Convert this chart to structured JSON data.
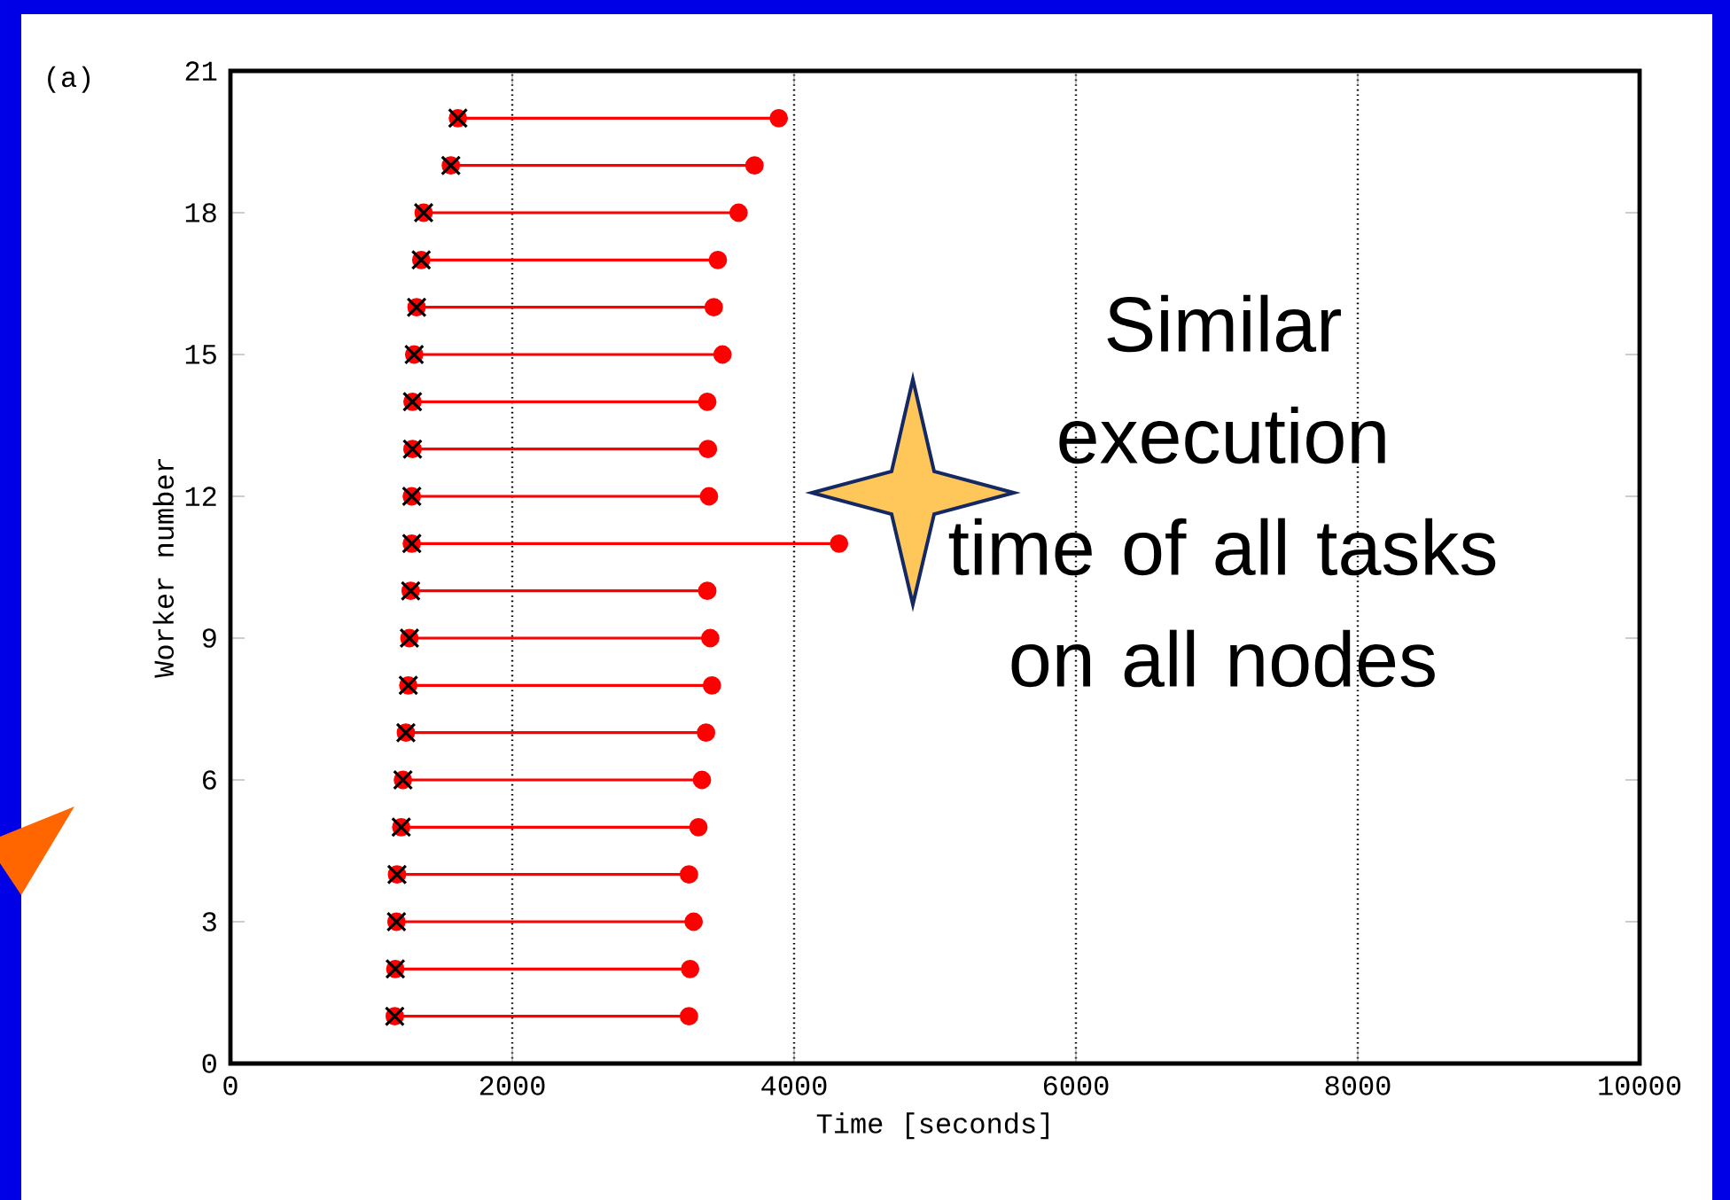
{
  "chart_data": {
    "type": "line",
    "xlabel": "Time [seconds]",
    "ylabel": "Worker number",
    "xlim": [
      0,
      10000
    ],
    "xticks": [
      0,
      2000,
      4000,
      6000,
      8000,
      10000
    ],
    "ylim": [
      0,
      21
    ],
    "yticks": [
      0,
      3,
      6,
      9,
      12,
      15,
      18,
      21
    ],
    "grid": "x",
    "marker": "circle",
    "line_style": "solid",
    "annotations": [
      "(a)",
      "Similar execution time of all tasks on all nodes"
    ],
    "series": [
      {
        "color": "#ff0000",
        "x": [
          1166,
          3254
        ],
        "values": [
          1,
          1
        ]
      },
      {
        "color": "#ff0000",
        "x": [
          1170,
          3262
        ],
        "values": [
          2,
          2
        ]
      },
      {
        "color": "#ff0000",
        "x": [
          1178,
          3287
        ],
        "values": [
          3,
          3
        ]
      },
      {
        "color": "#ff0000",
        "x": [
          1182,
          3254
        ],
        "values": [
          4,
          4
        ]
      },
      {
        "color": "#ff0000",
        "x": [
          1212,
          3321
        ],
        "values": [
          5,
          5
        ]
      },
      {
        "color": "#ff0000",
        "x": [
          1224,
          3346
        ],
        "values": [
          6,
          6
        ]
      },
      {
        "color": "#ff0000",
        "x": [
          1245,
          3375
        ],
        "values": [
          7,
          7
        ]
      },
      {
        "color": "#ff0000",
        "x": [
          1262,
          3417
        ],
        "values": [
          8,
          8
        ]
      },
      {
        "color": "#ff0000",
        "x": [
          1270,
          3405
        ],
        "values": [
          9,
          9
        ]
      },
      {
        "color": "#ff0000",
        "x": [
          1279,
          3384
        ],
        "values": [
          10,
          10
        ]
      },
      {
        "color": "#ff0000",
        "x": [
          1287,
          4319
        ],
        "values": [
          11,
          11
        ]
      },
      {
        "color": "#ff0000",
        "x": [
          1287,
          3396
        ],
        "values": [
          12,
          12
        ]
      },
      {
        "color": "#ff0000",
        "x": [
          1292,
          3388
        ],
        "values": [
          13,
          13
        ]
      },
      {
        "color": "#ff0000",
        "x": [
          1292,
          3384
        ],
        "values": [
          14,
          14
        ]
      },
      {
        "color": "#ff0000",
        "x": [
          1304,
          3492
        ],
        "values": [
          15,
          15
        ]
      },
      {
        "color": "#ff0000",
        "x": [
          1321,
          3430
        ],
        "values": [
          16,
          16
        ]
      },
      {
        "color": "#ff0000",
        "x": [
          1354,
          3459
        ],
        "values": [
          17,
          17
        ]
      },
      {
        "color": "#ff0000",
        "x": [
          1371,
          3606
        ],
        "values": [
          18,
          18
        ]
      },
      {
        "color": "#ff0000",
        "x": [
          1564,
          3719
        ],
        "values": [
          19,
          19
        ]
      },
      {
        "color": "#ff0000",
        "x": [
          1614,
          3891
        ],
        "values": [
          20,
          20
        ]
      },
      {
        "type": "scatter",
        "marker": "cross",
        "color": "#000000",
        "x": [
          1166,
          1170,
          1178,
          1182,
          1212,
          1224,
          1245,
          1262,
          1270,
          1279,
          1287,
          1287,
          1292,
          1292,
          1304,
          1321,
          1354,
          1371,
          1564,
          1614
        ],
        "values": [
          1,
          2,
          3,
          4,
          5,
          6,
          7,
          8,
          9,
          10,
          11,
          12,
          13,
          14,
          15,
          16,
          17,
          18,
          19,
          20
        ]
      }
    ]
  }
}
